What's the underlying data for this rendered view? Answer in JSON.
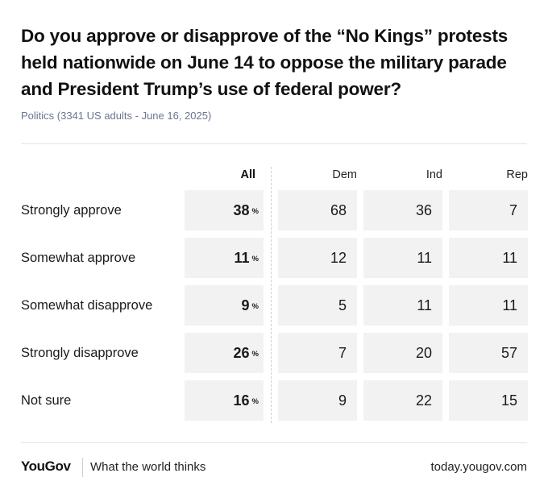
{
  "header": {
    "title": "Do you approve or disapprove of the “No Kings” protests held nationwide on June 14 to oppose the military parade and President Trump’s use of federal power?",
    "subtitle": "Politics (3341 US adults - June 16, 2025)"
  },
  "chart_data": {
    "type": "table",
    "columns": [
      "All",
      "Dem",
      "Ind",
      "Rep"
    ],
    "percent_symbol": "%",
    "rows": [
      {
        "label": "Strongly approve",
        "values": [
          "38",
          "68",
          "36",
          "7"
        ]
      },
      {
        "label": "Somewhat approve",
        "values": [
          "11",
          "12",
          "11",
          "11"
        ]
      },
      {
        "label": "Somewhat disapprove",
        "values": [
          "9",
          "5",
          "11",
          "11"
        ]
      },
      {
        "label": "Strongly disapprove",
        "values": [
          "26",
          "7",
          "20",
          "57"
        ]
      },
      {
        "label": "Not sure",
        "values": [
          "16",
          "9",
          "22",
          "15"
        ]
      }
    ]
  },
  "footer": {
    "logo": "YouGov",
    "tagline": "What the world thinks",
    "url": "today.yougov.com"
  }
}
